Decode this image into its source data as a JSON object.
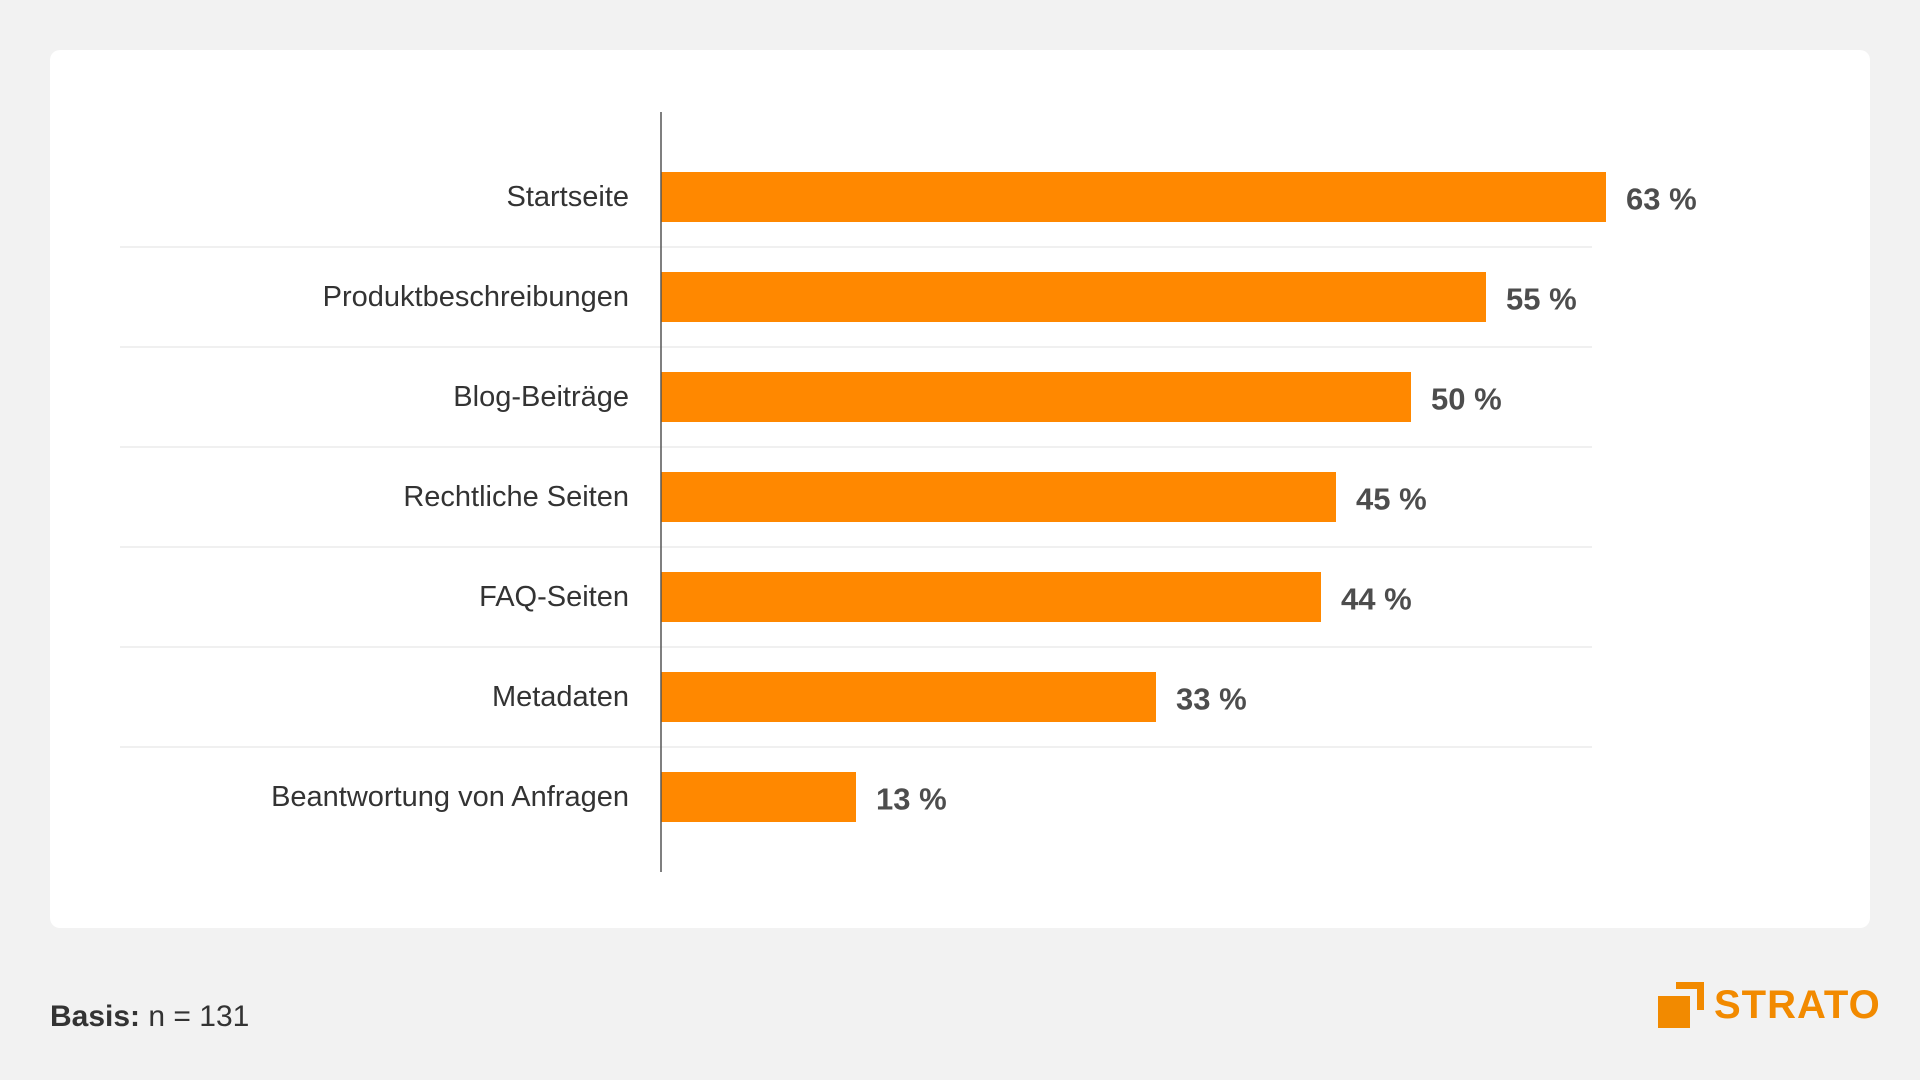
{
  "chart_data": {
    "type": "bar",
    "orientation": "horizontal",
    "categories": [
      "Startseite",
      "Produktbeschreibungen",
      "Blog-Beiträge",
      "Rechtliche Seiten",
      "FAQ-Seiten",
      "Metadaten",
      "Beantwortung von Anfragen"
    ],
    "values": [
      63,
      55,
      50,
      45,
      44,
      33,
      13
    ],
    "value_suffix": " %",
    "title": "",
    "xlabel": "",
    "ylabel": "",
    "xlim": [
      0,
      63
    ],
    "grid": false,
    "bar_color": "#ff8800",
    "label_color": "#333333",
    "value_color": "#4d4d4d"
  },
  "footer": {
    "basis_label": "Basis:",
    "basis_value": "n = 131"
  },
  "logo": {
    "text": "STRATO",
    "color": "#f28a00"
  }
}
